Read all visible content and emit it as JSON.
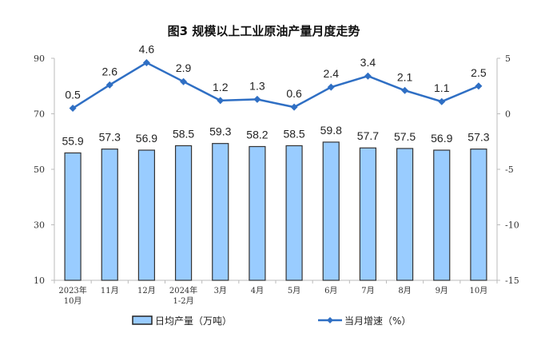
{
  "chart_data": {
    "type": "bar+line",
    "title": "图3  规模以上工业原油产量月度走势",
    "categories": [
      [
        "2023年",
        "10月"
      ],
      [
        "11月"
      ],
      [
        "12月"
      ],
      [
        "2024年",
        "1-2月"
      ],
      [
        "3月"
      ],
      [
        "4月"
      ],
      [
        "5月"
      ],
      [
        "6月"
      ],
      [
        "7月"
      ],
      [
        "8月"
      ],
      [
        "9月"
      ],
      [
        "10月"
      ]
    ],
    "series": [
      {
        "name": "日均产量（万吨）",
        "type": "bar",
        "axis": "left",
        "values": [
          55.9,
          57.3,
          56.9,
          58.5,
          59.3,
          58.2,
          58.5,
          59.8,
          57.7,
          57.5,
          56.9,
          57.3
        ],
        "color": "#99ccff"
      },
      {
        "name": "当月增速（%）",
        "type": "line",
        "axis": "right",
        "values": [
          0.5,
          2.6,
          4.6,
          2.9,
          1.2,
          1.3,
          0.6,
          2.4,
          3.4,
          2.1,
          1.1,
          2.5
        ],
        "color": "#2f6fc4"
      }
    ],
    "left_axis": {
      "ylim": [
        10,
        90
      ],
      "ticks": [
        10,
        30,
        50,
        70,
        90
      ]
    },
    "right_axis": {
      "ylim": [
        -15,
        5
      ],
      "ticks": [
        -15,
        -10,
        -5,
        0,
        5
      ]
    },
    "legend_position": "bottom"
  }
}
